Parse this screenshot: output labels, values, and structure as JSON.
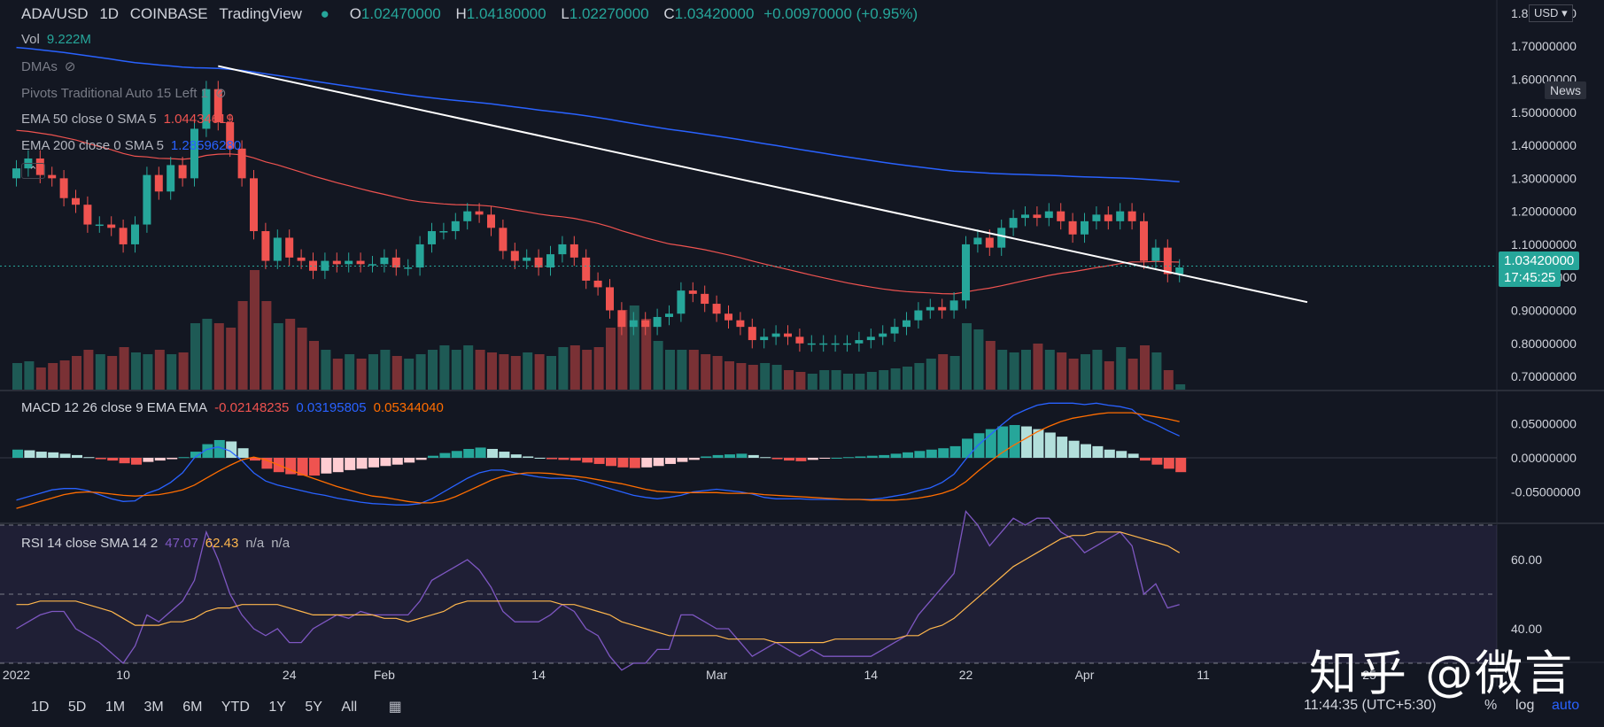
{
  "header": {
    "symbol": "ADA/USD",
    "interval": "1D",
    "exchange": "COINBASE",
    "source": "TradingView",
    "ohlc": {
      "o_label": "O",
      "o": "1.02470000",
      "h_label": "H",
      "h": "1.04180000",
      "l_label": "L",
      "l": "1.02270000",
      "c_label": "C",
      "c": "1.03420000",
      "change": "+0.00970000 (+0.95%)"
    }
  },
  "indicators": {
    "vol": {
      "label": "Vol",
      "value": "9.222M"
    },
    "dmas": {
      "label": "DMAs"
    },
    "pivots": {
      "label": "Pivots Traditional Auto 15 Left 1"
    },
    "ema50": {
      "label": "EMA 50 close 0 SMA 5",
      "value": "1.04434619",
      "color": "#ef5350"
    },
    "ema200": {
      "label": "EMA 200 close 0 SMA 5",
      "value": "1.28596280",
      "color": "#2962ff"
    },
    "macd": {
      "label": "MACD 12 26 close 9 EMA EMA",
      "hist": "-0.02148235",
      "macd": "0.03195805",
      "signal": "0.05344040"
    },
    "rsi": {
      "label": "RSI 14 close SMA 14 2",
      "rsi": "47.07",
      "ma": "62.43",
      "na1": "n/a",
      "na2": "n/a"
    }
  },
  "price_axis": {
    "currency": "USD",
    "ticks": [
      "1.80000000",
      "1.70000000",
      "1.60000000",
      "1.50000000",
      "1.40000000",
      "1.30000000",
      "1.20000000",
      "1.10000000",
      "1.00000000",
      "0.90000000",
      "0.80000000",
      "0.70000000"
    ],
    "last_price": "1.03420000",
    "countdown": "17:45:25",
    "news": "News"
  },
  "macd_axis": {
    "ticks": [
      "0.05000000",
      "0.00000000",
      "-0.05000000"
    ]
  },
  "rsi_axis": {
    "ticks": [
      "60.00",
      "40.00"
    ]
  },
  "time_axis": {
    "ticks": [
      "2022",
      "10",
      "24",
      "Feb",
      "14",
      "Mar",
      "14",
      "22",
      "Apr",
      "11",
      "25"
    ]
  },
  "bottom_bar": {
    "timeframes": [
      "1D",
      "5D",
      "1M",
      "3M",
      "6M",
      "YTD",
      "1Y",
      "5Y",
      "All"
    ],
    "clock": "11:44:35 (UTC+5:30)",
    "pct": "%",
    "log": "log",
    "auto": "auto"
  },
  "watermark": "知乎 @微言",
  "colors": {
    "up": "#26a69a",
    "down": "#ef5350",
    "ema50": "#ef5350",
    "ema200": "#2962ff",
    "rsi": "#7e57c2",
    "rsi_ma": "#ffb74d",
    "trend": "#ffffff",
    "bg": "#131722"
  },
  "chart_data": {
    "type": "candlestick",
    "title": "ADA/USD 1D COINBASE",
    "y_range": [
      0.66,
      1.84
    ],
    "dates": [
      "Jan 1",
      "Jan 2",
      "Jan 3",
      "Jan 4",
      "Jan 5",
      "Jan 6",
      "Jan 7",
      "Jan 8",
      "Jan 9",
      "Jan 10",
      "Jan 11",
      "Jan 12",
      "Jan 13",
      "Jan 14",
      "Jan 15",
      "Jan 16",
      "Jan 17",
      "Jan 18",
      "Jan 19",
      "Jan 20",
      "Jan 21",
      "Jan 22",
      "Jan 23",
      "Jan 24",
      "Jan 25",
      "Jan 26",
      "Jan 27",
      "Jan 28",
      "Jan 29",
      "Jan 30",
      "Jan 31",
      "Feb 1",
      "Feb 2",
      "Feb 3",
      "Feb 4",
      "Feb 5",
      "Feb 6",
      "Feb 7",
      "Feb 8",
      "Feb 9",
      "Feb 10",
      "Feb 11",
      "Feb 12",
      "Feb 13",
      "Feb 14",
      "Feb 15",
      "Feb 16",
      "Feb 17",
      "Feb 18",
      "Feb 19",
      "Feb 20",
      "Feb 21",
      "Feb 22",
      "Feb 23",
      "Feb 24",
      "Feb 25",
      "Feb 26",
      "Feb 27",
      "Feb 28",
      "Mar 1",
      "Mar 2",
      "Mar 3",
      "Mar 4",
      "Mar 5",
      "Mar 6",
      "Mar 7",
      "Mar 8",
      "Mar 9",
      "Mar 10",
      "Mar 11",
      "Mar 12",
      "Mar 13",
      "Mar 14",
      "Mar 15",
      "Mar 16",
      "Mar 17",
      "Mar 18",
      "Mar 19",
      "Mar 20",
      "Mar 21",
      "Mar 22",
      "Mar 23",
      "Mar 24",
      "Mar 25",
      "Mar 26",
      "Mar 27",
      "Mar 28",
      "Mar 29",
      "Mar 30",
      "Mar 31",
      "Apr 1",
      "Apr 2",
      "Apr 3",
      "Apr 4",
      "Apr 5",
      "Apr 6",
      "Apr 7",
      "Apr 8",
      "Apr 9"
    ],
    "close": [
      1.33,
      1.36,
      1.31,
      1.3,
      1.24,
      1.22,
      1.16,
      1.16,
      1.15,
      1.1,
      1.16,
      1.31,
      1.26,
      1.34,
      1.3,
      1.45,
      1.57,
      1.47,
      1.39,
      1.3,
      1.14,
      1.05,
      1.12,
      1.06,
      1.05,
      1.02,
      1.05,
      1.04,
      1.05,
      1.04,
      1.04,
      1.06,
      1.03,
      1.03,
      1.1,
      1.14,
      1.14,
      1.17,
      1.2,
      1.19,
      1.15,
      1.08,
      1.05,
      1.06,
      1.03,
      1.07,
      1.1,
      1.06,
      0.99,
      0.97,
      0.9,
      0.85,
      0.87,
      0.85,
      0.88,
      0.89,
      0.96,
      0.95,
      0.92,
      0.89,
      0.87,
      0.85,
      0.81,
      0.82,
      0.83,
      0.82,
      0.8,
      0.8,
      0.8,
      0.8,
      0.8,
      0.81,
      0.82,
      0.83,
      0.85,
      0.87,
      0.9,
      0.91,
      0.9,
      0.93,
      1.1,
      1.12,
      1.09,
      1.15,
      1.18,
      1.19,
      1.18,
      1.2,
      1.17,
      1.13,
      1.17,
      1.19,
      1.17,
      1.2,
      1.17,
      1.05,
      1.09,
      1.01,
      1.03
    ],
    "volume": [
      0.3,
      0.32,
      0.25,
      0.3,
      0.33,
      0.38,
      0.45,
      0.4,
      0.38,
      0.48,
      0.42,
      0.4,
      0.45,
      0.4,
      0.42,
      0.75,
      0.8,
      0.75,
      0.7,
      1.0,
      1.35,
      1.0,
      0.75,
      0.8,
      0.7,
      0.55,
      0.45,
      0.35,
      0.4,
      0.35,
      0.4,
      0.45,
      0.38,
      0.35,
      0.4,
      0.45,
      0.5,
      0.45,
      0.5,
      0.45,
      0.42,
      0.4,
      0.38,
      0.42,
      0.4,
      0.38,
      0.48,
      0.5,
      0.45,
      0.48,
      0.7,
      0.9,
      0.95,
      0.8,
      0.55,
      0.45,
      0.45,
      0.45,
      0.4,
      0.38,
      0.32,
      0.3,
      0.28,
      0.3,
      0.28,
      0.22,
      0.2,
      0.18,
      0.22,
      0.22,
      0.18,
      0.18,
      0.2,
      0.22,
      0.24,
      0.26,
      0.3,
      0.35,
      0.4,
      0.38,
      0.75,
      0.68,
      0.55,
      0.45,
      0.42,
      0.45,
      0.52,
      0.45,
      0.42,
      0.35,
      0.4,
      0.45,
      0.32,
      0.48,
      0.35,
      0.5,
      0.42,
      0.22,
      0.06
    ],
    "macd_hist": [
      0.012,
      0.011,
      0.009,
      0.008,
      0.006,
      0.004,
      0.001,
      -0.002,
      -0.004,
      -0.008,
      -0.01,
      -0.006,
      -0.004,
      -0.002,
      0.001,
      0.009,
      0.02,
      0.026,
      0.024,
      0.014,
      -0.004,
      -0.016,
      -0.021,
      -0.024,
      -0.026,
      -0.026,
      -0.023,
      -0.021,
      -0.018,
      -0.016,
      -0.014,
      -0.012,
      -0.01,
      -0.007,
      -0.003,
      0.003,
      0.007,
      0.01,
      0.013,
      0.015,
      0.013,
      0.009,
      0.005,
      0.002,
      0.0,
      -0.002,
      -0.003,
      -0.004,
      -0.007,
      -0.009,
      -0.012,
      -0.014,
      -0.015,
      -0.014,
      -0.012,
      -0.009,
      -0.006,
      -0.003,
      0.002,
      0.004,
      0.005,
      0.006,
      0.004,
      0.001,
      -0.002,
      -0.004,
      -0.005,
      -0.003,
      -0.001,
      0.0,
      0.001,
      0.002,
      0.003,
      0.004,
      0.006,
      0.008,
      0.01,
      0.012,
      0.014,
      0.017,
      0.028,
      0.036,
      0.042,
      0.046,
      0.048,
      0.046,
      0.042,
      0.037,
      0.031,
      0.025,
      0.02,
      0.017,
      0.012,
      0.01,
      0.006,
      -0.004,
      -0.01,
      -0.016,
      -0.021
    ],
    "macd_line": [
      -0.062,
      -0.057,
      -0.052,
      -0.047,
      -0.045,
      -0.045,
      -0.048,
      -0.054,
      -0.06,
      -0.064,
      -0.063,
      -0.052,
      -0.046,
      -0.036,
      -0.022,
      0.0,
      0.012,
      0.016,
      0.01,
      -0.004,
      -0.022,
      -0.034,
      -0.04,
      -0.044,
      -0.048,
      -0.052,
      -0.055,
      -0.059,
      -0.062,
      -0.065,
      -0.067,
      -0.068,
      -0.069,
      -0.069,
      -0.067,
      -0.06,
      -0.05,
      -0.04,
      -0.03,
      -0.022,
      -0.018,
      -0.018,
      -0.022,
      -0.025,
      -0.028,
      -0.03,
      -0.03,
      -0.031,
      -0.035,
      -0.04,
      -0.045,
      -0.05,
      -0.055,
      -0.058,
      -0.06,
      -0.058,
      -0.055,
      -0.05,
      -0.048,
      -0.046,
      -0.048,
      -0.05,
      -0.053,
      -0.058,
      -0.06,
      -0.06,
      -0.06,
      -0.061,
      -0.061,
      -0.061,
      -0.061,
      -0.061,
      -0.061,
      -0.059,
      -0.056,
      -0.053,
      -0.048,
      -0.044,
      -0.036,
      -0.024,
      -0.002,
      0.018,
      0.033,
      0.048,
      0.062,
      0.07,
      0.077,
      0.08,
      0.08,
      0.08,
      0.078,
      0.08,
      0.077,
      0.075,
      0.071,
      0.056,
      0.049,
      0.04,
      0.032
    ],
    "macd_signal": [
      -0.074,
      -0.069,
      -0.064,
      -0.059,
      -0.054,
      -0.051,
      -0.05,
      -0.051,
      -0.053,
      -0.055,
      -0.056,
      -0.055,
      -0.054,
      -0.051,
      -0.047,
      -0.04,
      -0.03,
      -0.02,
      -0.011,
      -0.003,
      0.001,
      -0.003,
      -0.01,
      -0.017,
      -0.024,
      -0.03,
      -0.036,
      -0.042,
      -0.047,
      -0.052,
      -0.056,
      -0.058,
      -0.061,
      -0.064,
      -0.066,
      -0.066,
      -0.063,
      -0.057,
      -0.049,
      -0.041,
      -0.033,
      -0.027,
      -0.024,
      -0.022,
      -0.022,
      -0.023,
      -0.025,
      -0.027,
      -0.029,
      -0.032,
      -0.035,
      -0.038,
      -0.042,
      -0.046,
      -0.049,
      -0.05,
      -0.051,
      -0.051,
      -0.051,
      -0.051,
      -0.052,
      -0.052,
      -0.052,
      -0.054,
      -0.055,
      -0.056,
      -0.057,
      -0.058,
      -0.059,
      -0.06,
      -0.061,
      -0.061,
      -0.062,
      -0.062,
      -0.062,
      -0.061,
      -0.059,
      -0.056,
      -0.052,
      -0.046,
      -0.035,
      -0.02,
      -0.006,
      0.007,
      0.018,
      0.028,
      0.038,
      0.046,
      0.053,
      0.058,
      0.061,
      0.064,
      0.066,
      0.066,
      0.066,
      0.063,
      0.06,
      0.057,
      0.053
    ],
    "rsi": [
      40,
      42,
      44,
      45,
      45,
      40,
      38,
      36,
      33,
      30,
      35,
      44,
      42,
      45,
      48,
      54,
      68,
      60,
      50,
      44,
      40,
      38,
      40,
      36,
      36,
      40,
      42,
      44,
      43,
      45,
      44,
      44,
      44,
      44,
      48,
      54,
      56,
      58,
      60,
      57,
      52,
      45,
      42,
      42,
      42,
      44,
      47,
      45,
      40,
      38,
      32,
      28,
      30,
      30,
      34,
      34,
      44,
      44,
      42,
      40,
      40,
      36,
      32,
      34,
      36,
      34,
      32,
      34,
      32,
      32,
      32,
      32,
      32,
      34,
      36,
      38,
      44,
      48,
      52,
      56,
      74,
      70,
      64,
      68,
      72,
      70,
      72,
      72,
      68,
      66,
      62,
      64,
      66,
      68,
      64,
      50,
      53,
      46,
      47
    ],
    "rsi_ma": [
      47,
      47,
      48,
      48,
      48,
      48,
      47,
      46,
      45,
      43,
      41,
      41,
      41,
      42,
      42,
      43,
      45,
      46,
      46,
      47,
      47,
      47,
      47,
      46,
      45,
      44,
      44,
      44,
      44,
      44,
      44,
      43,
      43,
      42,
      43,
      44,
      45,
      47,
      48,
      48,
      48,
      48,
      48,
      48,
      48,
      48,
      47,
      47,
      46,
      45,
      44,
      42,
      41,
      40,
      39,
      38,
      38,
      38,
      38,
      38,
      37,
      37,
      37,
      37,
      36,
      36,
      36,
      36,
      36,
      37,
      37,
      37,
      37,
      37,
      37,
      38,
      38,
      40,
      41,
      43,
      46,
      49,
      52,
      55,
      58,
      60,
      62,
      64,
      66,
      67,
      67,
      68,
      68,
      68,
      67,
      66,
      65,
      64,
      62
    ]
  }
}
